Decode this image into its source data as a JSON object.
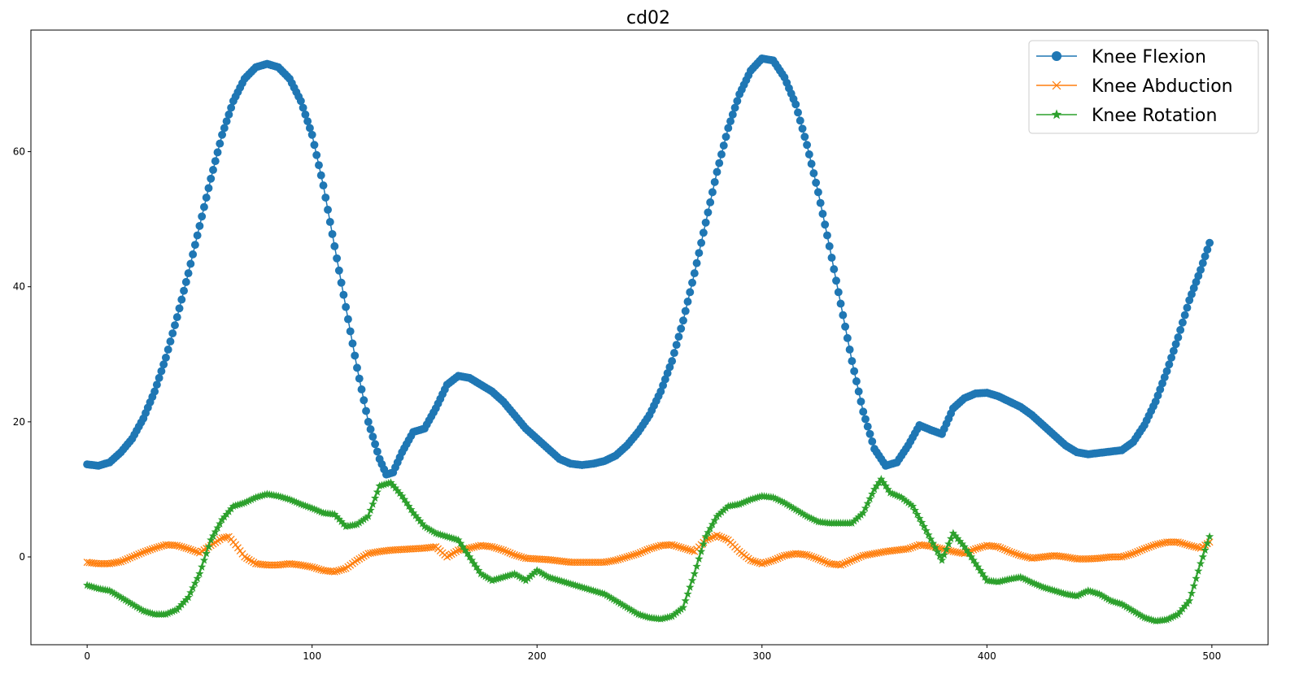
{
  "chart_data": {
    "type": "line",
    "title": "cd02",
    "xlabel": "",
    "ylabel": "",
    "xlim": [
      -25,
      525
    ],
    "ylim": [
      -13,
      78
    ],
    "x_ticks": [
      0,
      100,
      200,
      300,
      400,
      500
    ],
    "y_ticks": [
      0,
      20,
      40,
      60
    ],
    "grid": false,
    "legend_position": "top-right",
    "x_range": [
      0,
      499
    ],
    "series": [
      {
        "name": "Knee Flexion",
        "color": "#1f77b4",
        "marker": "circle",
        "points": [
          [
            0,
            13.7
          ],
          [
            5,
            13.5
          ],
          [
            10,
            14.0
          ],
          [
            15,
            15.5
          ],
          [
            20,
            17.5
          ],
          [
            25,
            20.5
          ],
          [
            30,
            24.5
          ],
          [
            35,
            29.5
          ],
          [
            40,
            35.5
          ],
          [
            45,
            42.0
          ],
          [
            50,
            49.0
          ],
          [
            55,
            56.0
          ],
          [
            60,
            62.5
          ],
          [
            65,
            67.5
          ],
          [
            70,
            70.8
          ],
          [
            75,
            72.5
          ],
          [
            80,
            73.0
          ],
          [
            85,
            72.5
          ],
          [
            90,
            70.8
          ],
          [
            95,
            67.5
          ],
          [
            100,
            62.5
          ],
          [
            105,
            55.0
          ],
          [
            110,
            46.0
          ],
          [
            115,
            37.0
          ],
          [
            120,
            28.0
          ],
          [
            125,
            20.0
          ],
          [
            130,
            14.5
          ],
          [
            133,
            12.2
          ],
          [
            136,
            12.5
          ],
          [
            140,
            15.5
          ],
          [
            145,
            18.5
          ],
          [
            150,
            19.0
          ],
          [
            155,
            22.0
          ],
          [
            160,
            25.5
          ],
          [
            165,
            26.8
          ],
          [
            170,
            26.5
          ],
          [
            175,
            25.5
          ],
          [
            180,
            24.5
          ],
          [
            185,
            23.0
          ],
          [
            190,
            21.0
          ],
          [
            195,
            19.0
          ],
          [
            200,
            17.5
          ],
          [
            205,
            16.0
          ],
          [
            210,
            14.5
          ],
          [
            215,
            13.8
          ],
          [
            220,
            13.6
          ],
          [
            225,
            13.8
          ],
          [
            230,
            14.2
          ],
          [
            235,
            15.0
          ],
          [
            240,
            16.5
          ],
          [
            245,
            18.5
          ],
          [
            250,
            21.0
          ],
          [
            255,
            24.5
          ],
          [
            260,
            29.0
          ],
          [
            265,
            35.0
          ],
          [
            270,
            42.0
          ],
          [
            275,
            49.5
          ],
          [
            280,
            57.0
          ],
          [
            285,
            63.5
          ],
          [
            290,
            68.5
          ],
          [
            295,
            72.0
          ],
          [
            300,
            73.8
          ],
          [
            305,
            73.5
          ],
          [
            310,
            71.0
          ],
          [
            315,
            67.0
          ],
          [
            320,
            61.0
          ],
          [
            325,
            54.0
          ],
          [
            330,
            46.0
          ],
          [
            335,
            37.5
          ],
          [
            340,
            29.0
          ],
          [
            345,
            21.5
          ],
          [
            350,
            16.0
          ],
          [
            355,
            13.5
          ],
          [
            360,
            14.0
          ],
          [
            365,
            16.5
          ],
          [
            370,
            19.5
          ],
          [
            375,
            18.8
          ],
          [
            380,
            18.2
          ],
          [
            385,
            22.0
          ],
          [
            390,
            23.5
          ],
          [
            395,
            24.2
          ],
          [
            400,
            24.3
          ],
          [
            405,
            23.8
          ],
          [
            410,
            23.0
          ],
          [
            415,
            22.2
          ],
          [
            420,
            21.0
          ],
          [
            425,
            19.5
          ],
          [
            430,
            18.0
          ],
          [
            435,
            16.5
          ],
          [
            440,
            15.5
          ],
          [
            445,
            15.2
          ],
          [
            450,
            15.4
          ],
          [
            455,
            15.6
          ],
          [
            460,
            15.8
          ],
          [
            465,
            17.0
          ],
          [
            470,
            19.5
          ],
          [
            475,
            23.0
          ],
          [
            480,
            27.5
          ],
          [
            485,
            32.5
          ],
          [
            490,
            38.0
          ],
          [
            495,
            42.5
          ],
          [
            499,
            46.5
          ]
        ]
      },
      {
        "name": "Knee Abduction",
        "color": "#ff7f0e",
        "marker": "x",
        "points": [
          [
            0,
            -0.8
          ],
          [
            5,
            -1.0
          ],
          [
            10,
            -1.0
          ],
          [
            15,
            -0.7
          ],
          [
            20,
            0.0
          ],
          [
            25,
            0.7
          ],
          [
            30,
            1.3
          ],
          [
            35,
            1.8
          ],
          [
            40,
            1.7
          ],
          [
            45,
            1.2
          ],
          [
            50,
            0.6
          ],
          [
            55,
            1.7
          ],
          [
            60,
            2.8
          ],
          [
            63,
            3.0
          ],
          [
            66,
            1.8
          ],
          [
            70,
            0.0
          ],
          [
            75,
            -1.0
          ],
          [
            80,
            -1.2
          ],
          [
            85,
            -1.2
          ],
          [
            90,
            -1.0
          ],
          [
            95,
            -1.2
          ],
          [
            100,
            -1.5
          ],
          [
            105,
            -2.0
          ],
          [
            110,
            -2.2
          ],
          [
            115,
            -1.7
          ],
          [
            120,
            -0.5
          ],
          [
            125,
            0.5
          ],
          [
            130,
            0.8
          ],
          [
            135,
            1.0
          ],
          [
            140,
            1.1
          ],
          [
            145,
            1.2
          ],
          [
            150,
            1.3
          ],
          [
            155,
            1.5
          ],
          [
            160,
            0.0
          ],
          [
            165,
            1.0
          ],
          [
            170,
            1.3
          ],
          [
            175,
            1.7
          ],
          [
            180,
            1.5
          ],
          [
            185,
            1.0
          ],
          [
            190,
            0.3
          ],
          [
            195,
            -0.2
          ],
          [
            200,
            -0.3
          ],
          [
            205,
            -0.4
          ],
          [
            210,
            -0.6
          ],
          [
            215,
            -0.8
          ],
          [
            220,
            -0.8
          ],
          [
            225,
            -0.8
          ],
          [
            230,
            -0.8
          ],
          [
            235,
            -0.5
          ],
          [
            240,
            0.0
          ],
          [
            245,
            0.5
          ],
          [
            250,
            1.2
          ],
          [
            255,
            1.7
          ],
          [
            260,
            1.8
          ],
          [
            265,
            1.3
          ],
          [
            270,
            0.8
          ],
          [
            275,
            2.5
          ],
          [
            280,
            3.2
          ],
          [
            285,
            2.5
          ],
          [
            290,
            0.8
          ],
          [
            295,
            -0.5
          ],
          [
            300,
            -1.0
          ],
          [
            305,
            -0.5
          ],
          [
            310,
            0.2
          ],
          [
            315,
            0.5
          ],
          [
            320,
            0.3
          ],
          [
            325,
            -0.3
          ],
          [
            330,
            -1.0
          ],
          [
            335,
            -1.2
          ],
          [
            340,
            -0.5
          ],
          [
            345,
            0.2
          ],
          [
            350,
            0.5
          ],
          [
            355,
            0.8
          ],
          [
            360,
            1.0
          ],
          [
            365,
            1.2
          ],
          [
            370,
            1.8
          ],
          [
            375,
            1.6
          ],
          [
            380,
            1.2
          ],
          [
            385,
            0.8
          ],
          [
            390,
            0.5
          ],
          [
            395,
            1.2
          ],
          [
            400,
            1.7
          ],
          [
            405,
            1.5
          ],
          [
            410,
            0.8
          ],
          [
            415,
            0.2
          ],
          [
            420,
            -0.2
          ],
          [
            425,
            0.0
          ],
          [
            430,
            0.2
          ],
          [
            435,
            0.0
          ],
          [
            440,
            -0.3
          ],
          [
            445,
            -0.3
          ],
          [
            450,
            -0.2
          ],
          [
            455,
            0.0
          ],
          [
            460,
            0.0
          ],
          [
            465,
            0.5
          ],
          [
            470,
            1.2
          ],
          [
            475,
            1.8
          ],
          [
            480,
            2.2
          ],
          [
            485,
            2.2
          ],
          [
            490,
            1.7
          ],
          [
            495,
            1.3
          ],
          [
            499,
            2.2
          ]
        ]
      },
      {
        "name": "Knee Rotation",
        "color": "#2ca02c",
        "marker": "star",
        "points": [
          [
            0,
            -4.2
          ],
          [
            5,
            -4.7
          ],
          [
            10,
            -5.0
          ],
          [
            15,
            -6.0
          ],
          [
            20,
            -7.0
          ],
          [
            25,
            -8.0
          ],
          [
            30,
            -8.5
          ],
          [
            35,
            -8.5
          ],
          [
            40,
            -7.8
          ],
          [
            45,
            -6.0
          ],
          [
            50,
            -2.5
          ],
          [
            55,
            2.5
          ],
          [
            60,
            5.5
          ],
          [
            65,
            7.5
          ],
          [
            70,
            8.0
          ],
          [
            75,
            8.8
          ],
          [
            80,
            9.3
          ],
          [
            85,
            9.0
          ],
          [
            90,
            8.5
          ],
          [
            95,
            7.8
          ],
          [
            100,
            7.2
          ],
          [
            105,
            6.5
          ],
          [
            110,
            6.3
          ],
          [
            115,
            4.5
          ],
          [
            120,
            4.8
          ],
          [
            125,
            6.0
          ],
          [
            130,
            10.5
          ],
          [
            135,
            11.0
          ],
          [
            140,
            9.0
          ],
          [
            145,
            6.5
          ],
          [
            150,
            4.5
          ],
          [
            155,
            3.5
          ],
          [
            160,
            3.0
          ],
          [
            165,
            2.5
          ],
          [
            170,
            0.0
          ],
          [
            175,
            -2.5
          ],
          [
            180,
            -3.5
          ],
          [
            185,
            -3.0
          ],
          [
            190,
            -2.5
          ],
          [
            195,
            -3.5
          ],
          [
            200,
            -2.0
          ],
          [
            205,
            -3.0
          ],
          [
            210,
            -3.5
          ],
          [
            215,
            -4.0
          ],
          [
            220,
            -4.5
          ],
          [
            225,
            -5.0
          ],
          [
            230,
            -5.5
          ],
          [
            235,
            -6.5
          ],
          [
            240,
            -7.5
          ],
          [
            245,
            -8.5
          ],
          [
            250,
            -9.0
          ],
          [
            255,
            -9.2
          ],
          [
            260,
            -8.8
          ],
          [
            265,
            -7.5
          ],
          [
            270,
            -2.5
          ],
          [
            275,
            3.0
          ],
          [
            280,
            6.0
          ],
          [
            285,
            7.5
          ],
          [
            290,
            7.8
          ],
          [
            295,
            8.5
          ],
          [
            300,
            9.0
          ],
          [
            305,
            8.8
          ],
          [
            310,
            8.0
          ],
          [
            315,
            7.0
          ],
          [
            320,
            6.0
          ],
          [
            325,
            5.2
          ],
          [
            330,
            5.0
          ],
          [
            335,
            5.0
          ],
          [
            340,
            5.0
          ],
          [
            345,
            6.5
          ],
          [
            350,
            10.0
          ],
          [
            353,
            11.5
          ],
          [
            357,
            9.5
          ],
          [
            362,
            8.8
          ],
          [
            367,
            7.5
          ],
          [
            372,
            4.5
          ],
          [
            376,
            2.0
          ],
          [
            380,
            -0.5
          ],
          [
            385,
            3.5
          ],
          [
            390,
            1.5
          ],
          [
            395,
            -1.0
          ],
          [
            400,
            -3.5
          ],
          [
            405,
            -3.7
          ],
          [
            410,
            -3.3
          ],
          [
            415,
            -3.0
          ],
          [
            420,
            -3.8
          ],
          [
            425,
            -4.5
          ],
          [
            430,
            -5.0
          ],
          [
            435,
            -5.5
          ],
          [
            440,
            -5.8
          ],
          [
            445,
            -5.0
          ],
          [
            450,
            -5.5
          ],
          [
            455,
            -6.5
          ],
          [
            460,
            -7.0
          ],
          [
            465,
            -8.0
          ],
          [
            470,
            -9.0
          ],
          [
            475,
            -9.5
          ],
          [
            480,
            -9.3
          ],
          [
            485,
            -8.5
          ],
          [
            490,
            -6.5
          ],
          [
            495,
            -1.0
          ],
          [
            499,
            3.0
          ]
        ]
      }
    ]
  }
}
